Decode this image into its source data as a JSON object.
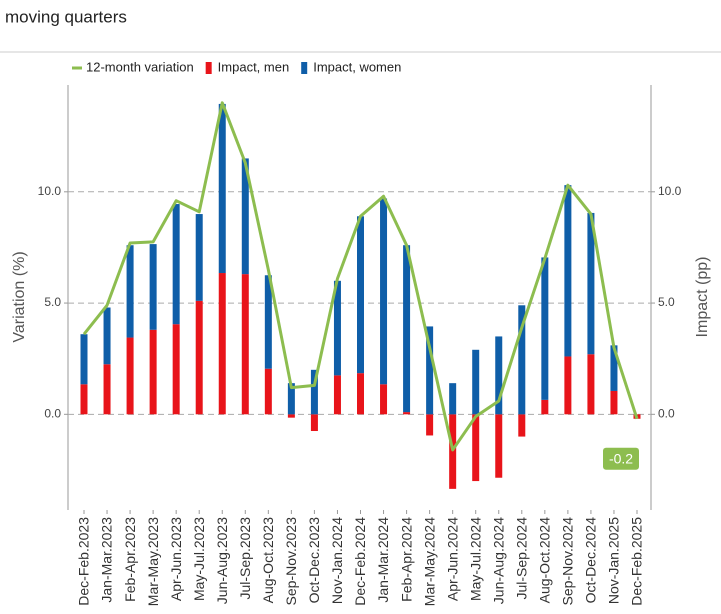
{
  "subtitle": "moving quarters",
  "chart_data": {
    "type": "bar-line",
    "categories": [
      "Dec-Feb.2023",
      "Jan-Mar.2023",
      "Feb-Apr.2023",
      "Mar-May.2023",
      "Apr-Jun.2023",
      "May-Jul.2023",
      "Jun-Aug.2023",
      "Jul-Sep.2023",
      "Aug-Oct.2023",
      "Sep-Nov.2023",
      "Oct-Dec.2023",
      "Nov-Jan.2024",
      "Dec-Feb.2024",
      "Jan-Mar.2024",
      "Feb-Apr.2024",
      "Mar-May.2024",
      "Apr-Jun.2024",
      "May-Jul.2024",
      "Jun-Aug.2024",
      "Jul-Sep.2024",
      "Aug-Oct.2024",
      "Sep-Nov.2024",
      "Oct-Dec.2024",
      "Nov-Jan.2025",
      "Dec-Feb.2025"
    ],
    "series": [
      {
        "name": "12-month variation",
        "type": "line",
        "color": "#8dbd4f",
        "values": [
          3.6,
          4.9,
          7.7,
          7.75,
          9.6,
          9.1,
          14.0,
          11.3,
          6.5,
          1.2,
          1.3,
          6.1,
          8.9,
          9.8,
          7.6,
          3.0,
          -1.6,
          -0.1,
          0.6,
          3.9,
          7.0,
          10.3,
          9.0,
          3.0,
          -0.2
        ]
      },
      {
        "name": "Impact, men",
        "type": "bar",
        "axis": "y2",
        "color": "#e8141a",
        "values": [
          1.35,
          2.25,
          3.45,
          3.8,
          4.05,
          5.1,
          6.35,
          6.3,
          2.05,
          -0.15,
          -0.75,
          1.75,
          1.85,
          1.35,
          0.1,
          -0.95,
          -3.35,
          -3.0,
          -2.85,
          -1.0,
          0.65,
          2.6,
          2.7,
          1.05,
          -0.2
        ]
      },
      {
        "name": "Impact, women",
        "type": "bar",
        "axis": "y2",
        "color": "#0f5ea8",
        "values": [
          2.25,
          2.55,
          4.15,
          3.85,
          5.4,
          3.9,
          7.6,
          5.2,
          4.2,
          1.4,
          2.0,
          4.25,
          7.05,
          8.35,
          7.5,
          3.95,
          1.4,
          2.9,
          3.5,
          4.9,
          6.4,
          7.7,
          6.35,
          2.05,
          0
        ]
      }
    ],
    "y_label": "Variation (%)",
    "y2_label": "Impact (pp)",
    "ylim": [
      -4.3,
      14.8
    ],
    "yticks": [
      {
        "value": 0,
        "label": "0.0"
      },
      {
        "value": 5,
        "label": "5.0"
      },
      {
        "value": 10,
        "label": "10.0"
      }
    ],
    "y2lim": [
      -4.3,
      14.8
    ],
    "y2ticks": [
      {
        "value": 0,
        "label": "0.0"
      },
      {
        "value": 5,
        "label": "5.0"
      },
      {
        "value": 10,
        "label": "10.0"
      }
    ],
    "grid": true
  }
}
